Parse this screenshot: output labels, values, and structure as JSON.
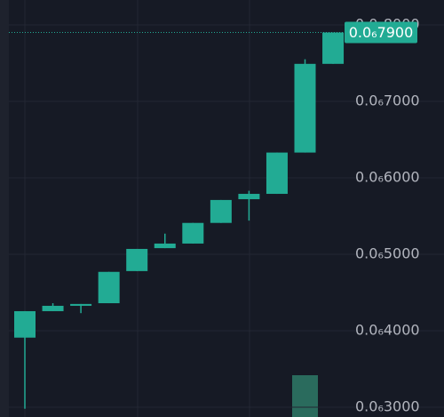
{
  "chart_data": {
    "type": "candlestick",
    "open": [
      3.91e-07,
      4.256e-07,
      4.326e-07,
      4.36e-07,
      4.78e-07,
      5.08e-07,
      5.14e-07,
      5.41e-07,
      5.72e-07,
      5.79e-07,
      6.33e-07,
      7.49e-07
    ],
    "high": [
      4.256e-07,
      4.36e-07,
      4.35e-07,
      4.77e-07,
      5.07e-07,
      5.27e-07,
      5.41e-07,
      5.71e-07,
      5.83e-07,
      6.33e-07,
      7.55e-07,
      7.9e-07
    ],
    "low": [
      2.98e-07,
      4.256e-07,
      4.23e-07,
      4.36e-07,
      4.78e-07,
      5.08e-07,
      5.14e-07,
      5.41e-07,
      5.44e-07,
      5.79e-07,
      6.33e-07,
      7.49e-07
    ],
    "close": [
      4.256e-07,
      4.326e-07,
      4.35e-07,
      4.77e-07,
      5.07e-07,
      5.14e-07,
      5.41e-07,
      5.71e-07,
      5.79e-07,
      6.33e-07,
      7.49e-07,
      7.9e-07
    ],
    "color": "#22ab94",
    "ylim": [
      2.872e-07,
      8.325e-07
    ],
    "yticks": [
      {
        "value": 3e-07,
        "label": "0.0₆3000"
      },
      {
        "value": 4e-07,
        "label": "0.0₆4000"
      },
      {
        "value": 5e-07,
        "label": "0.0₆5000"
      },
      {
        "value": 6e-07,
        "label": "0.0₆6000"
      },
      {
        "value": 7e-07,
        "label": "0.0₆7000"
      },
      {
        "value": 8e-07,
        "label": "0.0₆8000"
      }
    ],
    "grid": true,
    "last_price": {
      "value": 7.9e-07,
      "label": "0.0₆7900"
    }
  }
}
